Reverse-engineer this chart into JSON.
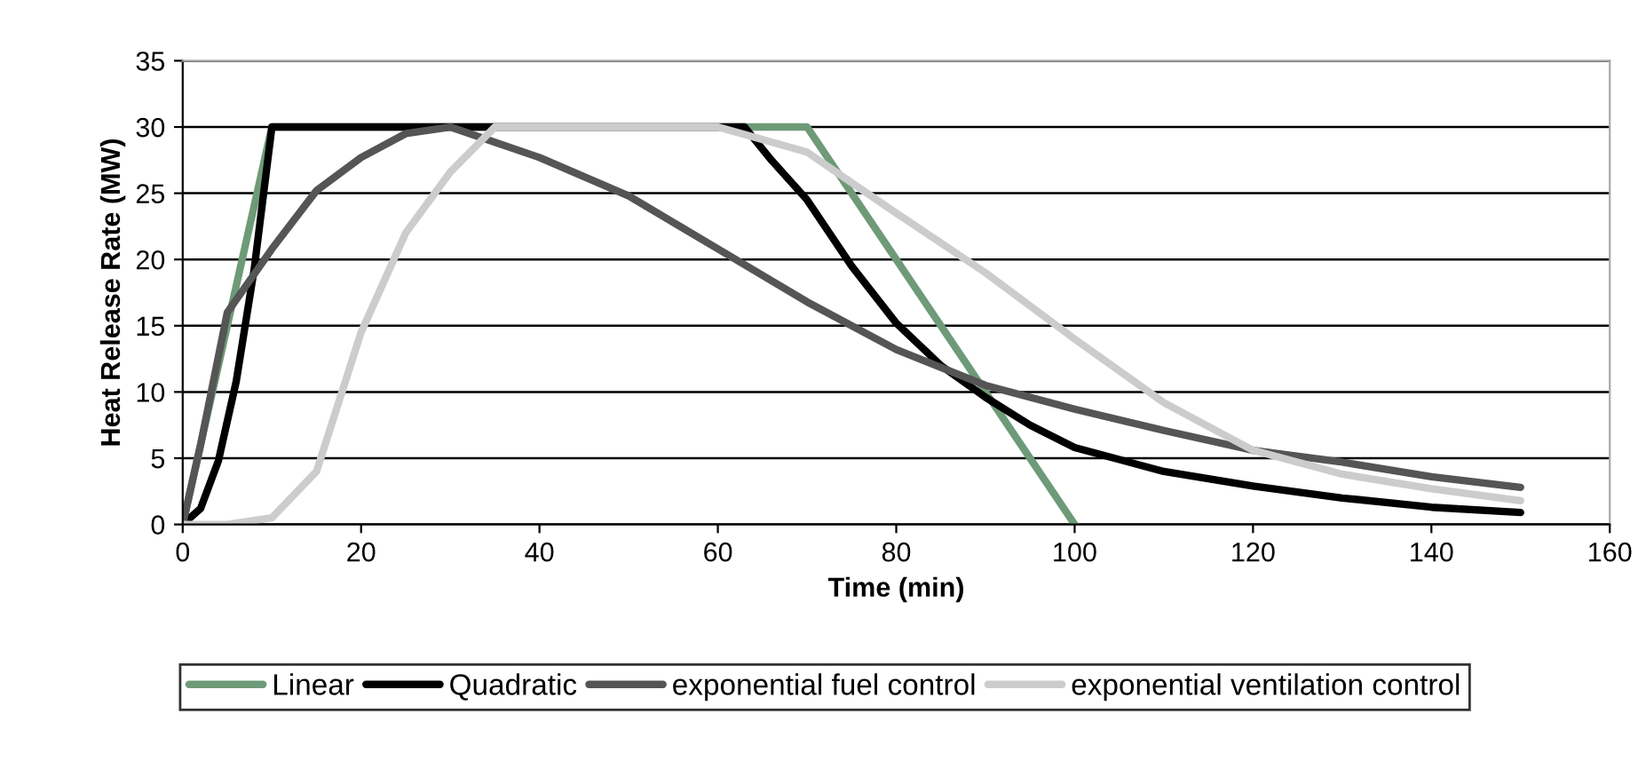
{
  "chart_data": {
    "type": "line",
    "xlabel": "Time (min)",
    "ylabel": "Heat Release Rate (MW)",
    "xlim": [
      0,
      160
    ],
    "xticks": [
      0,
      20,
      40,
      60,
      80,
      100,
      120,
      140,
      160
    ],
    "ylim": [
      0,
      35
    ],
    "yticks": [
      0,
      5,
      10,
      15,
      20,
      25,
      30,
      35
    ],
    "grid": "y",
    "legend": "bottom",
    "line_style": "solid",
    "marker": "none",
    "series": [
      {
        "name": "Linear",
        "color": "#6e9a78",
        "x": [
          0,
          10,
          70,
          100
        ],
        "values": [
          0,
          30,
          30,
          0
        ]
      },
      {
        "name": "Quadratic",
        "color": "#000000",
        "x": [
          0,
          2,
          4,
          6,
          8,
          10,
          63,
          66,
          70,
          75,
          80,
          85,
          90,
          95,
          100,
          110,
          120,
          130,
          140,
          150
        ],
        "values": [
          0,
          1.2,
          4.8,
          10.8,
          19.2,
          30,
          30,
          27.5,
          24.5,
          19.5,
          15.2,
          12,
          9.6,
          7.5,
          5.8,
          4,
          2.9,
          2,
          1.3,
          0.9
        ]
      },
      {
        "name": "exponential fuel control",
        "color": "#555555",
        "x": [
          0,
          2,
          5,
          10,
          15,
          20,
          25,
          30,
          40,
          50,
          60,
          70,
          80,
          90,
          100,
          110,
          120,
          130,
          140,
          150
        ],
        "values": [
          0,
          6,
          16,
          20.8,
          25.2,
          27.7,
          29.5,
          30,
          27.7,
          24.8,
          20.8,
          16.8,
          13.2,
          10.5,
          8.7,
          7.1,
          5.6,
          4.7,
          3.6,
          2.8
        ]
      },
      {
        "name": "exponential ventilation control",
        "color": "#cccccc",
        "x": [
          0,
          5,
          10,
          15,
          20,
          25,
          30,
          35,
          60,
          70,
          80,
          90,
          100,
          110,
          120,
          130,
          140,
          150
        ],
        "values": [
          0,
          0,
          0.5,
          4,
          14.5,
          22,
          26.6,
          30,
          30,
          28.1,
          23.5,
          19,
          14,
          9.2,
          5.6,
          3.8,
          2.7,
          1.8
        ]
      }
    ]
  }
}
